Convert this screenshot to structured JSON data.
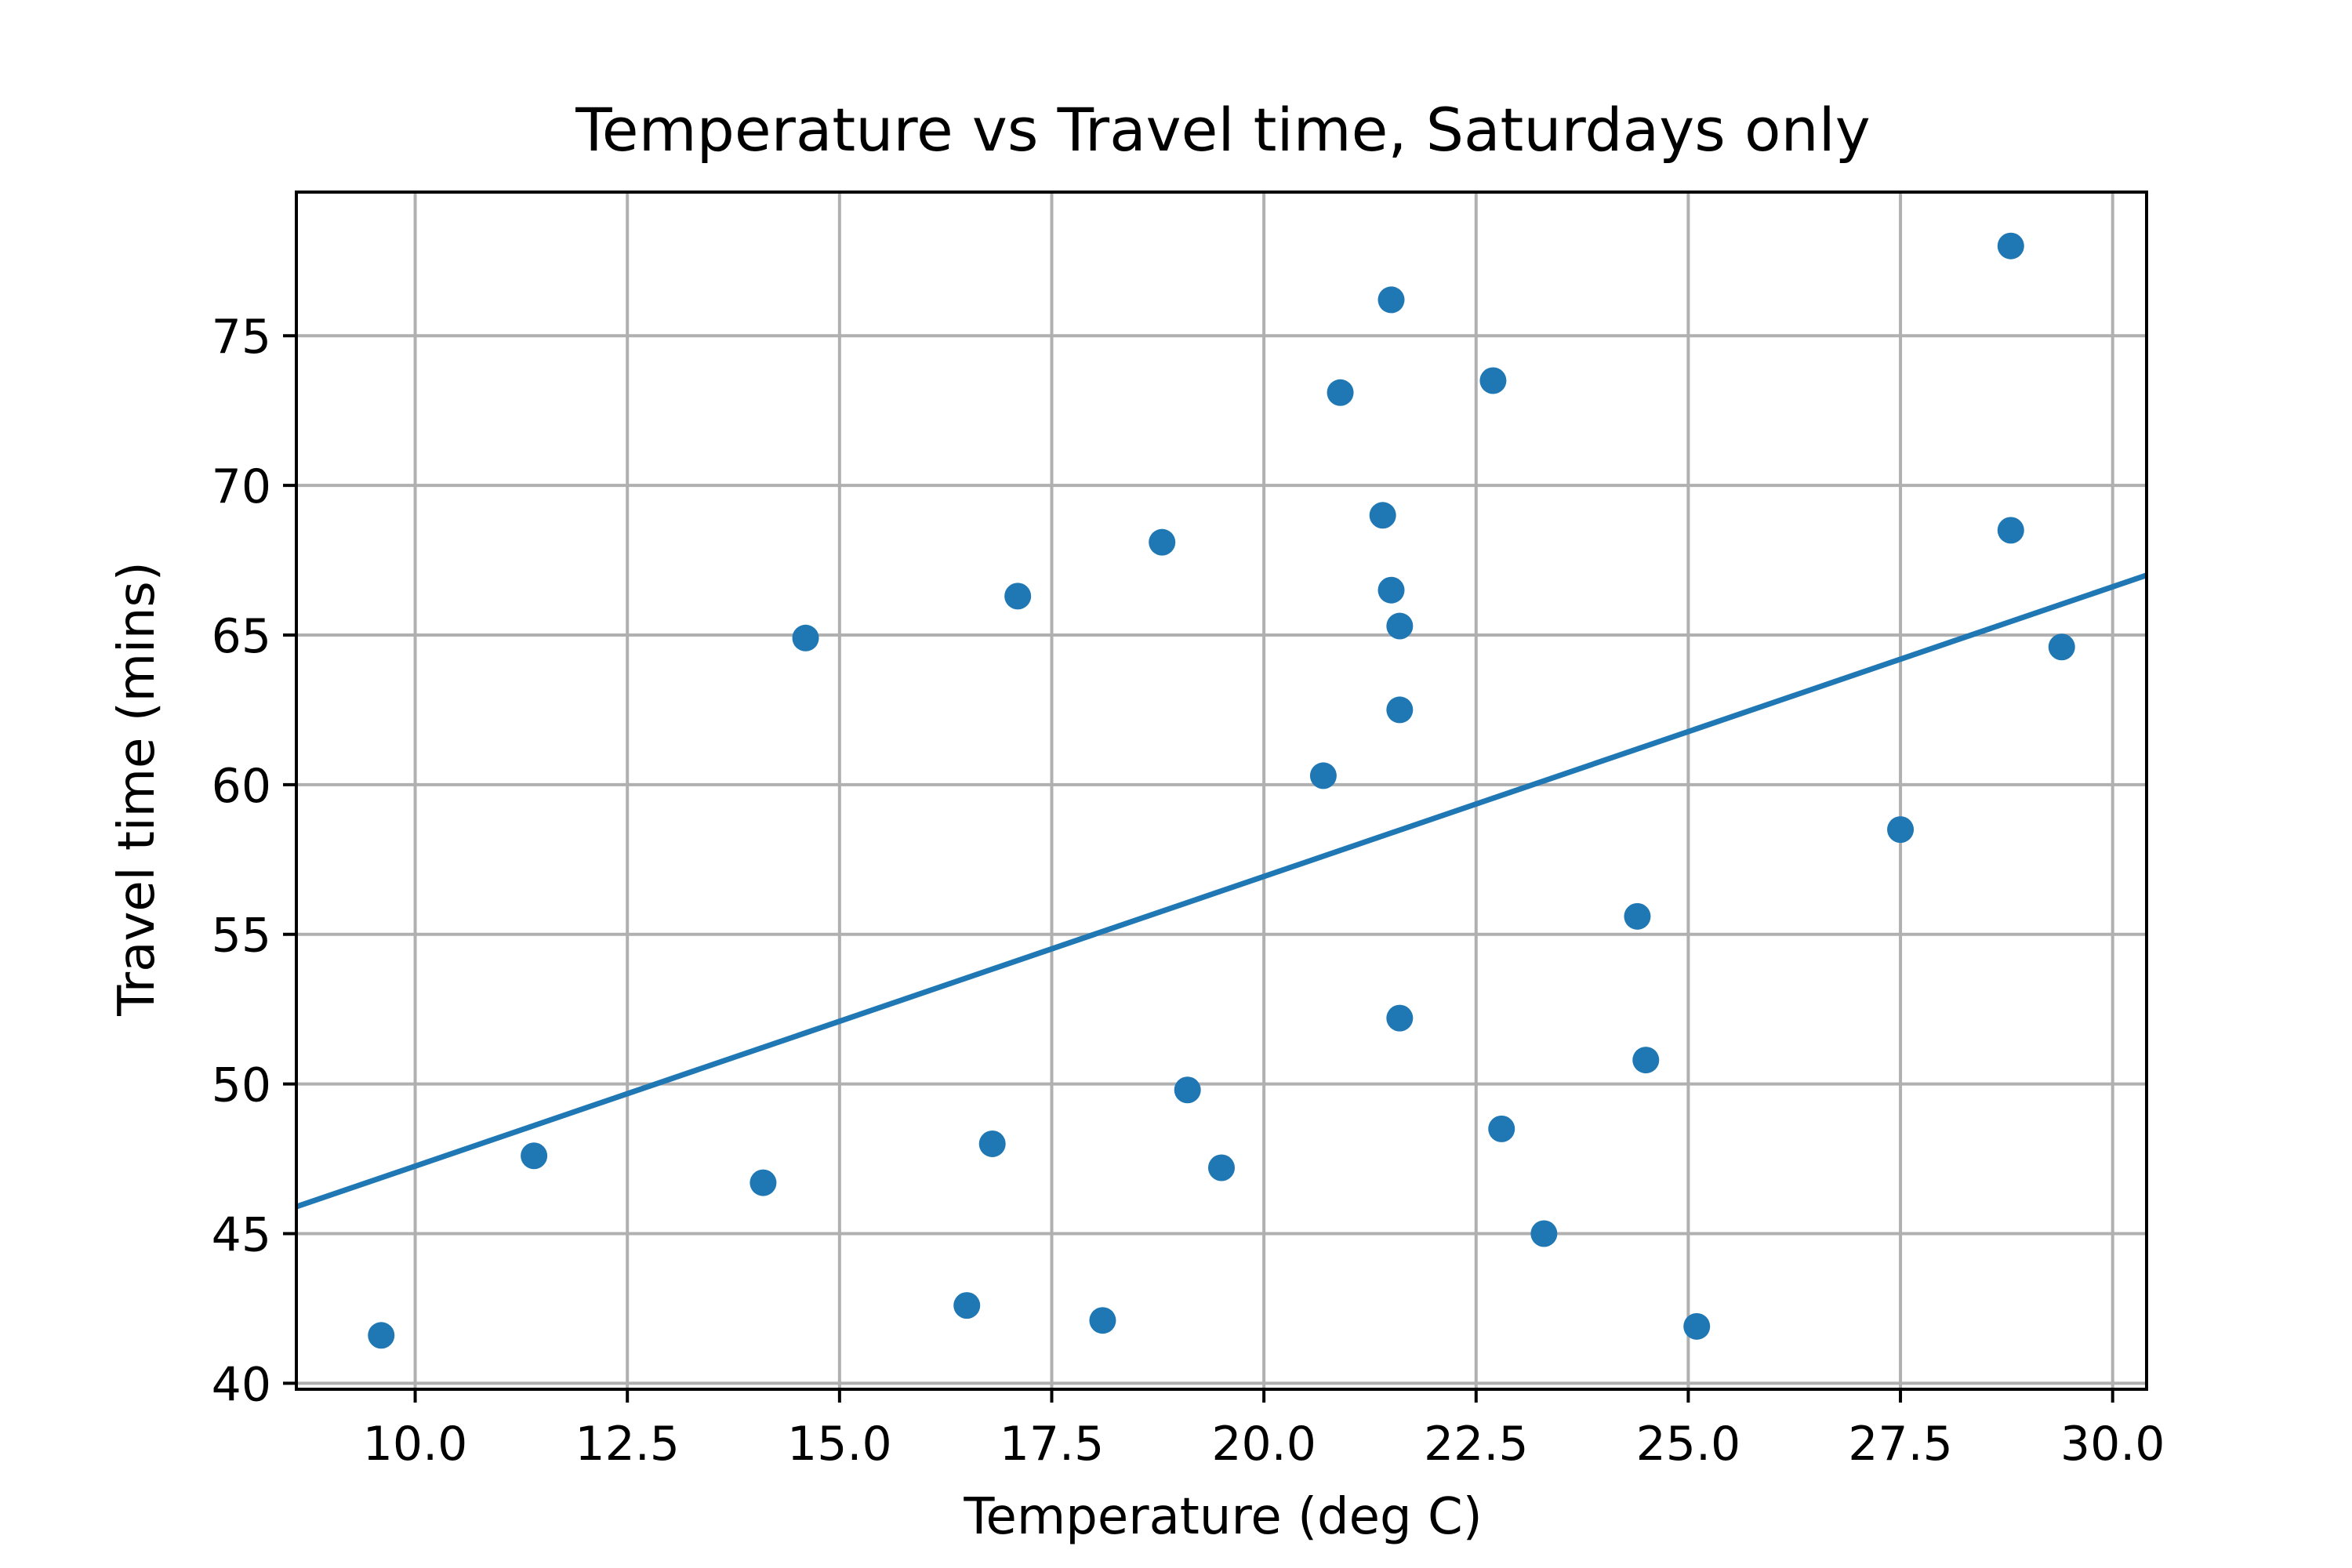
{
  "chart_data": {
    "type": "scatter",
    "title": "Temperature vs Travel time, Saturdays only",
    "xlabel": "Temperature (deg C)",
    "ylabel": "Travel time (mins)",
    "xlim": [
      8.6,
      30.4
    ],
    "ylim": [
      39.8,
      79.8
    ],
    "x_ticks": [
      10.0,
      12.5,
      15.0,
      17.5,
      20.0,
      22.5,
      25.0,
      27.5,
      30.0
    ],
    "x_tick_labels": [
      "10.0",
      "12.5",
      "15.0",
      "17.5",
      "20.0",
      "22.5",
      "25.0",
      "27.5",
      "30.0"
    ],
    "y_ticks": [
      40,
      45,
      50,
      55,
      60,
      65,
      70,
      75
    ],
    "y_tick_labels": [
      "40",
      "45",
      "50",
      "55",
      "60",
      "65",
      "70",
      "75"
    ],
    "grid": true,
    "color": "#1f77b4",
    "series": [
      {
        "type": "scatter",
        "points": [
          {
            "x": 9.6,
            "y": 41.6
          },
          {
            "x": 11.4,
            "y": 47.6
          },
          {
            "x": 14.1,
            "y": 46.7
          },
          {
            "x": 14.6,
            "y": 64.9
          },
          {
            "x": 16.5,
            "y": 42.6
          },
          {
            "x": 16.8,
            "y": 48.0
          },
          {
            "x": 17.1,
            "y": 66.3
          },
          {
            "x": 18.1,
            "y": 42.1
          },
          {
            "x": 18.8,
            "y": 68.1
          },
          {
            "x": 19.1,
            "y": 49.8
          },
          {
            "x": 19.5,
            "y": 47.2
          },
          {
            "x": 20.7,
            "y": 60.3
          },
          {
            "x": 20.9,
            "y": 73.1
          },
          {
            "x": 21.4,
            "y": 69.0
          },
          {
            "x": 21.5,
            "y": 76.2
          },
          {
            "x": 21.5,
            "y": 66.5
          },
          {
            "x": 21.6,
            "y": 65.3
          },
          {
            "x": 21.6,
            "y": 62.5
          },
          {
            "x": 21.6,
            "y": 52.2
          },
          {
            "x": 22.7,
            "y": 73.5
          },
          {
            "x": 22.8,
            "y": 48.5
          },
          {
            "x": 23.3,
            "y": 45.0
          },
          {
            "x": 24.4,
            "y": 55.6
          },
          {
            "x": 24.5,
            "y": 50.8
          },
          {
            "x": 25.1,
            "y": 41.9
          },
          {
            "x": 27.5,
            "y": 58.5
          },
          {
            "x": 28.8,
            "y": 78.0
          },
          {
            "x": 28.8,
            "y": 68.5
          },
          {
            "x": 29.4,
            "y": 64.6
          }
        ]
      },
      {
        "type": "line",
        "points": [
          {
            "x": 8.6,
            "y": 45.9
          },
          {
            "x": 30.4,
            "y": 67.0
          }
        ]
      }
    ]
  }
}
